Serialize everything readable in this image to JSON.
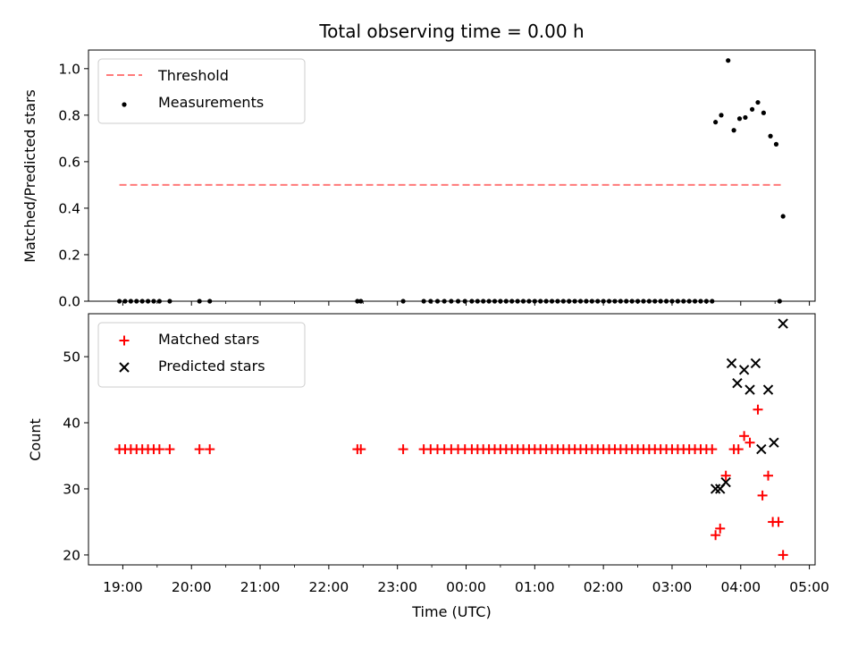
{
  "chart_data": [
    {
      "type": "scatter",
      "title": "Total observing time = 0.00 h",
      "xlabel": "",
      "ylabel": "Matched/Predicted stars",
      "xlim": [
        "18:30",
        "05:05"
      ],
      "ylim": [
        0,
        1.08
      ],
      "xticks": [
        "19:00",
        "20:00",
        "21:00",
        "22:00",
        "23:00",
        "00:00",
        "01:00",
        "02:00",
        "03:00",
        "04:00",
        "05:00"
      ],
      "yticks": [
        "0.0",
        "0.2",
        "0.4",
        "0.6",
        "0.8",
        "1.0"
      ],
      "legend_position": "upper-left",
      "threshold": {
        "name": "Threshold",
        "y": 0.5,
        "x_start": "18:57",
        "x_end": "04:37",
        "color": "#ff7a7a",
        "style": "dashed"
      },
      "series": [
        {
          "name": "Measurements",
          "marker": "dot",
          "color": "#000000",
          "points": [
            [
              "18:57",
              0
            ],
            [
              "19:02",
              0
            ],
            [
              "19:07",
              0
            ],
            [
              "19:12",
              0
            ],
            [
              "19:17",
              0
            ],
            [
              "19:22",
              0
            ],
            [
              "19:27",
              0
            ],
            [
              "19:32",
              0
            ],
            [
              "19:41",
              0
            ],
            [
              "20:07",
              0
            ],
            [
              "20:16",
              0
            ],
            [
              "22:25",
              0
            ],
            [
              "22:28",
              0
            ],
            [
              "23:05",
              0
            ],
            [
              "23:23",
              0
            ],
            [
              "23:29",
              0
            ],
            [
              "23:35",
              0
            ],
            [
              "23:41",
              0
            ],
            [
              "23:47",
              0
            ],
            [
              "23:53",
              0
            ],
            [
              "23:59",
              0
            ],
            [
              "00:05",
              0
            ],
            [
              "00:10",
              0
            ],
            [
              "00:15",
              0
            ],
            [
              "00:20",
              0
            ],
            [
              "00:25",
              0
            ],
            [
              "00:30",
              0
            ],
            [
              "00:35",
              0
            ],
            [
              "00:40",
              0
            ],
            [
              "00:45",
              0
            ],
            [
              "00:50",
              0
            ],
            [
              "00:55",
              0
            ],
            [
              "01:00",
              0
            ],
            [
              "01:05",
              0
            ],
            [
              "01:10",
              0
            ],
            [
              "01:15",
              0
            ],
            [
              "01:20",
              0
            ],
            [
              "01:25",
              0
            ],
            [
              "01:30",
              0
            ],
            [
              "01:35",
              0
            ],
            [
              "01:40",
              0
            ],
            [
              "01:45",
              0
            ],
            [
              "01:50",
              0
            ],
            [
              "01:55",
              0
            ],
            [
              "02:00",
              0
            ],
            [
              "02:05",
              0
            ],
            [
              "02:10",
              0
            ],
            [
              "02:15",
              0
            ],
            [
              "02:20",
              0
            ],
            [
              "02:25",
              0
            ],
            [
              "02:30",
              0
            ],
            [
              "02:35",
              0
            ],
            [
              "02:40",
              0
            ],
            [
              "02:45",
              0
            ],
            [
              "02:50",
              0
            ],
            [
              "02:55",
              0
            ],
            [
              "03:00",
              0
            ],
            [
              "03:05",
              0
            ],
            [
              "03:10",
              0
            ],
            [
              "03:15",
              0
            ],
            [
              "03:20",
              0
            ],
            [
              "03:25",
              0
            ],
            [
              "03:30",
              0
            ],
            [
              "03:35",
              0
            ],
            [
              "03:38",
              0.77
            ],
            [
              "03:43",
              0.8
            ],
            [
              "03:49",
              1.035
            ],
            [
              "03:54",
              0.735
            ],
            [
              "03:59",
              0.785
            ],
            [
              "04:04",
              0.79
            ],
            [
              "04:10",
              0.825
            ],
            [
              "04:15",
              0.855
            ],
            [
              "04:20",
              0.81
            ],
            [
              "04:26",
              0.71
            ],
            [
              "04:31",
              0.675
            ],
            [
              "04:34",
              0
            ],
            [
              "04:37",
              0.365
            ]
          ]
        }
      ]
    },
    {
      "type": "scatter",
      "title": "",
      "xlabel": "Time (UTC)",
      "ylabel": "Count",
      "xlim": [
        "18:30",
        "05:05"
      ],
      "ylim": [
        18.5,
        56.5
      ],
      "xticks": [
        "19:00",
        "20:00",
        "21:00",
        "22:00",
        "23:00",
        "00:00",
        "01:00",
        "02:00",
        "03:00",
        "04:00",
        "05:00"
      ],
      "yticks": [
        "20",
        "30",
        "40",
        "50"
      ],
      "legend_position": "upper-left",
      "series": [
        {
          "name": "Matched stars",
          "marker": "plus",
          "color": "#ff0000",
          "points": [
            [
              "18:57",
              36
            ],
            [
              "19:02",
              36
            ],
            [
              "19:07",
              36
            ],
            [
              "19:12",
              36
            ],
            [
              "19:17",
              36
            ],
            [
              "19:22",
              36
            ],
            [
              "19:27",
              36
            ],
            [
              "19:32",
              36
            ],
            [
              "19:41",
              36
            ],
            [
              "20:07",
              36
            ],
            [
              "20:16",
              36
            ],
            [
              "22:25",
              36
            ],
            [
              "22:28",
              36
            ],
            [
              "23:05",
              36
            ],
            [
              "23:23",
              36
            ],
            [
              "23:29",
              36
            ],
            [
              "23:35",
              36
            ],
            [
              "23:41",
              36
            ],
            [
              "23:47",
              36
            ],
            [
              "23:53",
              36
            ],
            [
              "23:59",
              36
            ],
            [
              "00:05",
              36
            ],
            [
              "00:10",
              36
            ],
            [
              "00:15",
              36
            ],
            [
              "00:20",
              36
            ],
            [
              "00:25",
              36
            ],
            [
              "00:30",
              36
            ],
            [
              "00:35",
              36
            ],
            [
              "00:40",
              36
            ],
            [
              "00:45",
              36
            ],
            [
              "00:50",
              36
            ],
            [
              "00:55",
              36
            ],
            [
              "01:00",
              36
            ],
            [
              "01:05",
              36
            ],
            [
              "01:10",
              36
            ],
            [
              "01:15",
              36
            ],
            [
              "01:20",
              36
            ],
            [
              "01:25",
              36
            ],
            [
              "01:30",
              36
            ],
            [
              "01:35",
              36
            ],
            [
              "01:40",
              36
            ],
            [
              "01:45",
              36
            ],
            [
              "01:50",
              36
            ],
            [
              "01:55",
              36
            ],
            [
              "02:00",
              36
            ],
            [
              "02:05",
              36
            ],
            [
              "02:10",
              36
            ],
            [
              "02:15",
              36
            ],
            [
              "02:20",
              36
            ],
            [
              "02:25",
              36
            ],
            [
              "02:30",
              36
            ],
            [
              "02:35",
              36
            ],
            [
              "02:40",
              36
            ],
            [
              "02:45",
              36
            ],
            [
              "02:50",
              36
            ],
            [
              "02:55",
              36
            ],
            [
              "03:00",
              36
            ],
            [
              "03:05",
              36
            ],
            [
              "03:10",
              36
            ],
            [
              "03:15",
              36
            ],
            [
              "03:20",
              36
            ],
            [
              "03:25",
              36
            ],
            [
              "03:30",
              36
            ],
            [
              "03:35",
              36
            ],
            [
              "03:38",
              23
            ],
            [
              "03:42",
              24
            ],
            [
              "03:47",
              32
            ],
            [
              "03:54",
              36
            ],
            [
              "03:58",
              36
            ],
            [
              "04:03",
              38
            ],
            [
              "04:08",
              37
            ],
            [
              "04:15",
              42
            ],
            [
              "04:19",
              29
            ],
            [
              "04:24",
              32
            ],
            [
              "04:28",
              25
            ],
            [
              "04:33",
              25
            ],
            [
              "04:37",
              20
            ]
          ]
        },
        {
          "name": "Predicted stars",
          "marker": "x",
          "color": "#000000",
          "points": [
            [
              "03:38",
              30
            ],
            [
              "03:42",
              30
            ],
            [
              "03:47",
              31
            ],
            [
              "03:52",
              49
            ],
            [
              "03:57",
              46
            ],
            [
              "04:03",
              48
            ],
            [
              "04:08",
              45
            ],
            [
              "04:13",
              49
            ],
            [
              "04:18",
              36
            ],
            [
              "04:24",
              45
            ],
            [
              "04:29",
              37
            ],
            [
              "04:37",
              55
            ]
          ]
        }
      ]
    }
  ]
}
